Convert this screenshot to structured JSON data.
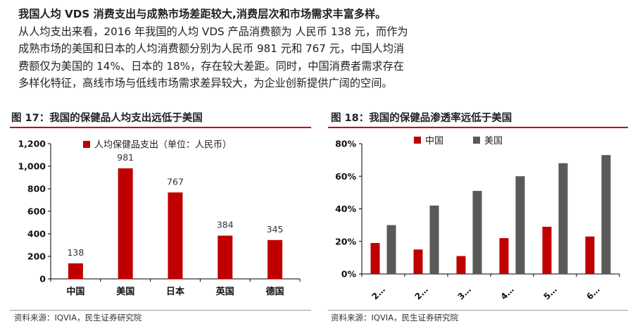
{
  "paragraph": {
    "lead_bold": "我国人均 VDS 消费支出与成熟市场差距较大,消费层次和市场需求丰富多样。",
    "line1": "从人均支出来看，2016 年我国的人均 VDS 产品消费额为  人民币 138 元，而作为",
    "line2": "成熟市场的美国和日本的人均消费额分别为人民币 981 元和 767 元，中国人均消",
    "line3": "费额仅为美国的 14%、日本的 18%，存在较大差距。同时，中国消费者需求存在",
    "line4": "多样化特征，高线市场与低线市场需求差异较大，为企业创新提供广阔的空间。"
  },
  "figure17": {
    "title": "图 17：我国的保健品人均支出远低于美国",
    "source": "资料来源：IQVIA，民生证券研究院"
  },
  "figure18": {
    "title": "图 18：我国的保健品渗透率远低于美国",
    "source": "资料来源：IQVIA，民生证券研究院"
  },
  "colors": {
    "china_red": "#c00000",
    "usa_gray": "#595959",
    "title_bar": "#c00000"
  },
  "chart_data": [
    {
      "type": "bar",
      "categories": [
        "中国",
        "美国",
        "日本",
        "英国",
        "德国"
      ],
      "series": [
        {
          "name": "人均保健品支出（单位：人民币）",
          "values": [
            138,
            981,
            767,
            384,
            345
          ]
        }
      ],
      "data_labels": [
        "138",
        "981",
        "767",
        "384",
        "345"
      ],
      "y_ticks": [
        "0",
        "200",
        "400",
        "600",
        "800",
        "1,000",
        "1,200"
      ],
      "ylim": [
        0,
        1200
      ],
      "legend": "top-left",
      "grid": false
    },
    {
      "type": "bar",
      "categories": [
        "2…",
        "2…",
        "3…",
        "4…",
        "5…",
        "6…"
      ],
      "series": [
        {
          "name": "中国",
          "values": [
            19,
            15,
            11,
            22,
            29,
            23
          ]
        },
        {
          "name": "美国",
          "values": [
            30,
            42,
            51,
            60,
            68,
            73
          ]
        }
      ],
      "y_ticks": [
        "0%",
        "20%",
        "40%",
        "60%",
        "80%"
      ],
      "ylim": [
        0,
        80
      ],
      "legend": "top",
      "grid": false
    }
  ]
}
